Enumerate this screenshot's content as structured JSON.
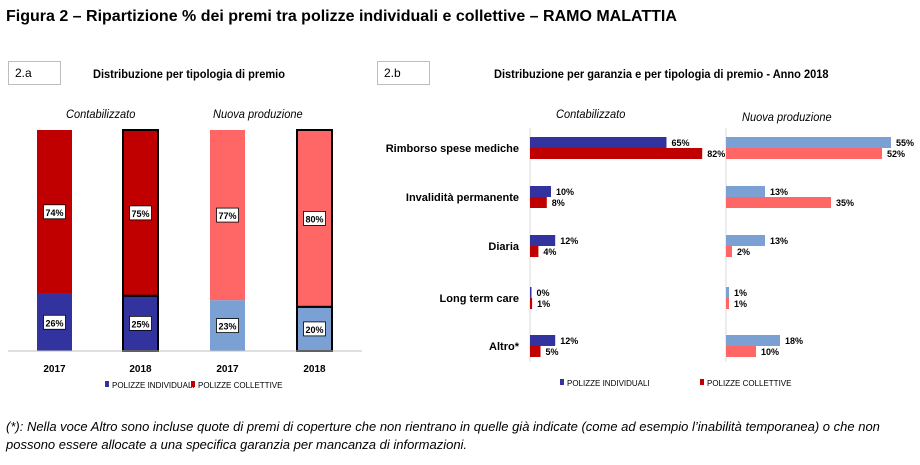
{
  "figure": {
    "title": "Figura 2 – Ripartizione % dei premi tra polizze individuali e collettive – RAMO MALATTIA",
    "footnote": "(*): Nella voce Altro sono incluse quote di premi di coperture che non rientrano in quelle già indicate (come ad esempio l’inabilità temporanea) o che non possono essere allocate a una specifica garanzia per mancanza di informazioni."
  },
  "panel_a": {
    "tag": "2.a",
    "title": "Distribuzione  per tipologia di premio",
    "group_labels": [
      "Contabilizzato",
      "Nuova produzione"
    ]
  },
  "panel_b": {
    "tag": "2.b",
    "title": "Distribuzione  per garanzia e per tipologia di premio - Anno 2018",
    "group_labels": [
      "Contabilizzato",
      "Nuova produzione"
    ]
  },
  "colors": {
    "individuali_contabilizzato": "#3333a0",
    "collettive_contabilizzato": "#c00000",
    "individuali_nuova": "#7ba0d4",
    "collettive_nuova": "#ff6666"
  },
  "chart_data": [
    {
      "type": "bar",
      "stacked": true,
      "percent": true,
      "groups": [
        "Contabilizzato",
        "Contabilizzato",
        "Nuova produzione",
        "Nuova produzione"
      ],
      "categories": [
        "2017",
        "2018",
        "2017",
        "2018"
      ],
      "series": [
        {
          "name": "POLIZZE INDIVIDUALI",
          "values": [
            26,
            25,
            23,
            20
          ]
        },
        {
          "name": "POLIZZE COLLETTIVE",
          "values": [
            74,
            75,
            77,
            80
          ]
        }
      ],
      "data_labels": [
        [
          "26%",
          "25%",
          "23%",
          "20%"
        ],
        [
          "74%",
          "75%",
          "77%",
          "80%"
        ]
      ],
      "ylim": [
        0,
        100
      ],
      "grid": false,
      "legend": "bottom"
    },
    {
      "type": "bar",
      "orientation": "horizontal",
      "categories": [
        "Rimborso spese mediche",
        "Invalidità permanente",
        "Diaria",
        "Long term care",
        "Altro*"
      ],
      "panels": [
        {
          "name": "Contabilizzato",
          "series": [
            {
              "name": "POLIZZE INDIVIDUALI",
              "values": [
                65,
                10,
                12,
                0,
                12
              ],
              "labels": [
                "65%",
                "10%",
                "12%",
                "0%",
                "12%"
              ]
            },
            {
              "name": "POLIZZE COLLETTIVE",
              "values": [
                82,
                8,
                4,
                1,
                5
              ],
              "labels": [
                "82%",
                "8%",
                "4%",
                "1%",
                "5%"
              ]
            }
          ]
        },
        {
          "name": "Nuova produzione",
          "series": [
            {
              "name": "POLIZZE INDIVIDUALI",
              "values": [
                55,
                13,
                13,
                1,
                18
              ],
              "labels": [
                "55%",
                "13%",
                "13%",
                "1%",
                "18%"
              ]
            },
            {
              "name": "POLIZZE COLLETTIVE",
              "values": [
                52,
                35,
                2,
                1,
                10
              ],
              "labels": [
                "52%",
                "35%",
                "2%",
                "1%",
                "10%"
              ]
            }
          ]
        }
      ],
      "xlim": [
        0,
        100
      ],
      "grid": false,
      "legend": "bottom"
    }
  ]
}
